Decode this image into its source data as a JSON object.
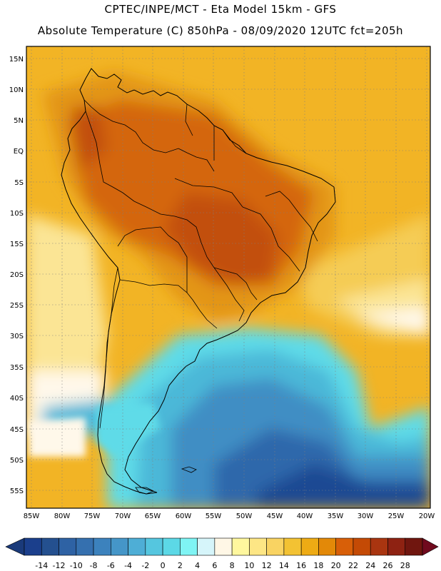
{
  "header": {
    "line1": "CPTEC/INPE/MCT -  Eta Model 15km - GFS",
    "line2": "Absolute Temperature (C) 850hPa - 08/09/2020 12UTC fct=205h"
  },
  "axes": {
    "lat_labels": [
      "15N",
      "10N",
      "5N",
      "EQ",
      "5S",
      "10S",
      "15S",
      "20S",
      "25S",
      "30S",
      "35S",
      "40S",
      "45S",
      "50S",
      "55S"
    ],
    "lon_labels": [
      "85W",
      "80W",
      "75W",
      "70W",
      "65W",
      "60W",
      "55W",
      "50W",
      "45W",
      "40W",
      "35W",
      "30W",
      "25W",
      "20W"
    ]
  },
  "colorbar": {
    "ticks": [
      "-14",
      "-12",
      "-10",
      "-8",
      "-6",
      "-4",
      "-2",
      "0",
      "2",
      "4",
      "6",
      "8",
      "10",
      "12",
      "14",
      "16",
      "18",
      "20",
      "22",
      "24",
      "26",
      "28"
    ],
    "colors": [
      "#1b3f8c",
      "#24508f",
      "#2e62a4",
      "#3570af",
      "#3c82bd",
      "#4596c8",
      "#4eaed6",
      "#55c6df",
      "#5cd8e6",
      "#7ff4f4",
      "#d6f5fa",
      "#fff7e6",
      "#fff79e",
      "#fde685",
      "#f9d362",
      "#f3c233",
      "#eeab14",
      "#e38908",
      "#d85f08",
      "#c44a05",
      "#a93510",
      "#8e2212",
      "#70160f"
    ],
    "under_color": "#1a3a7a",
    "over_color": "#700a1e"
  },
  "colors": {
    "ocean_warm": "#f2b425",
    "ocean_mid": "#f5cc55",
    "ocean_cool": "#fbe595",
    "land_warm": "#e39513",
    "land_hot": "#d46610",
    "land_hotter": "#c24f0c",
    "cold_cyan": "#5fdbe8",
    "cold_mid": "#4cb8d8",
    "cold_blue": "#3f8ec4",
    "cold_deep": "#2d68ab",
    "cold_deepest": "#1e4a93",
    "pale": "#fff8ea",
    "border": "#000000"
  }
}
